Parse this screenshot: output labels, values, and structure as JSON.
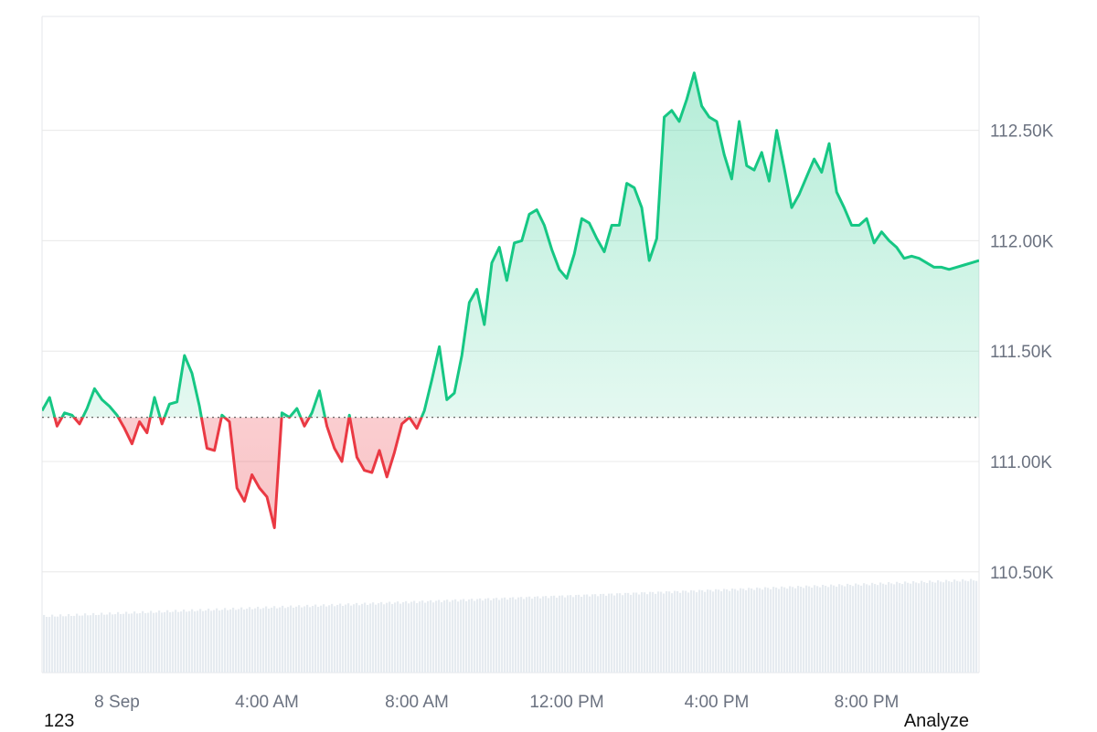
{
  "chart_data": {
    "type": "line",
    "baseline": 111200,
    "y_ticks": [
      "112.50K",
      "112.00K",
      "111.50K",
      "111.00K",
      "110.50K"
    ],
    "y_tick_values": [
      112500,
      112000,
      111500,
      111000,
      110500
    ],
    "x_ticks": [
      "8 Sep",
      "4:00 AM",
      "8:00 AM",
      "12:00 PM",
      "4:00 PM",
      "8:00 PM"
    ],
    "x_tick_hours": [
      0,
      4,
      8,
      12,
      16,
      20
    ],
    "x_range_hours": [
      -2.0,
      23.0
    ],
    "series": [
      {
        "hours": [
          -2.0,
          -1.8,
          -1.6,
          -1.4,
          -1.2,
          -1.0,
          -0.8,
          -0.6,
          -0.4,
          -0.2,
          0.0,
          0.2,
          0.4,
          0.6,
          0.8,
          1.0,
          1.2,
          1.4,
          1.6,
          1.8,
          2.0,
          2.2,
          2.4,
          2.6,
          2.8,
          3.0,
          3.2,
          3.4,
          3.6,
          3.8,
          4.0,
          4.2,
          4.4,
          4.6,
          4.8,
          5.0,
          5.2,
          5.4,
          5.6,
          5.8,
          6.0,
          6.2,
          6.4,
          6.6,
          6.8,
          7.0,
          7.2,
          7.4,
          7.6,
          7.8,
          8.0,
          8.2,
          8.4,
          8.6,
          8.8,
          9.0,
          9.2,
          9.4,
          9.6,
          9.8,
          10.0,
          10.2,
          10.4,
          10.6,
          10.8,
          11.0,
          11.2,
          11.4,
          11.6,
          11.8,
          12.0,
          12.2,
          12.4,
          12.6,
          12.8,
          13.0,
          13.2,
          13.4,
          13.6,
          13.8,
          14.0,
          14.2,
          14.4,
          14.6,
          14.8,
          15.0,
          15.2,
          15.4,
          15.6,
          15.8,
          16.0,
          16.2,
          16.4,
          16.6,
          16.8,
          17.0,
          17.2,
          17.4,
          17.6,
          17.8,
          18.0,
          18.2,
          18.4,
          18.6,
          18.8,
          19.0,
          19.2,
          19.4,
          19.6,
          19.8,
          20.0,
          20.2,
          20.4,
          20.6,
          20.8,
          21.0,
          21.2,
          21.4,
          21.6,
          21.8,
          22.0,
          22.2,
          22.4,
          22.6,
          22.8,
          23.0
        ],
        "values": [
          111230,
          111290,
          111160,
          111220,
          111210,
          111170,
          111240,
          111330,
          111280,
          111250,
          111210,
          111150,
          111080,
          111180,
          111130,
          111290,
          111170,
          111260,
          111270,
          111480,
          111400,
          111250,
          111060,
          111050,
          111210,
          111180,
          110880,
          110820,
          110940,
          110880,
          110840,
          110700,
          111220,
          111200,
          111240,
          111160,
          111220,
          111320,
          111160,
          111060,
          111000,
          111210,
          111020,
          110960,
          110950,
          111050,
          110930,
          111040,
          111170,
          111200,
          111150,
          111230,
          111370,
          111520,
          111280,
          111310,
          111480,
          111720,
          111780,
          111620,
          111900,
          111970,
          111820,
          111990,
          112000,
          112120,
          112140,
          112070,
          111960,
          111870,
          111830,
          111940,
          112100,
          112080,
          112010,
          111950,
          112070,
          112070,
          112260,
          112240,
          112150,
          111910,
          112010,
          112560,
          112590,
          112540,
          112640,
          112760,
          112610,
          112560,
          112540,
          112390,
          112280,
          112540,
          112340,
          112320,
          112400,
          112270,
          112500,
          112330,
          112150,
          112210,
          112290,
          112370,
          112310,
          112440,
          112220,
          112150,
          112070,
          112070,
          112100,
          111990,
          112040,
          112000,
          111970,
          111920,
          111930,
          111920,
          111900,
          111880,
          111880,
          111870,
          111880,
          111890,
          111900,
          111910
        ]
      }
    ],
    "colors": {
      "up": "#16c784",
      "down": "#ea3943",
      "up_fill": "#16c784",
      "down_fill": "#ea3943"
    },
    "grid": true,
    "has_volume_bars": true
  },
  "footer": {
    "left": "123",
    "right": "Analyze"
  }
}
